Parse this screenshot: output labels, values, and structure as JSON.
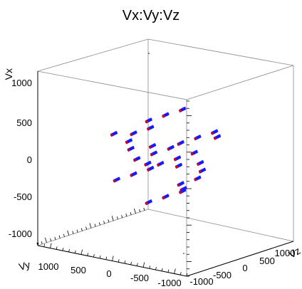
{
  "chart_data": {
    "type": "scatter",
    "title": "Vx:Vy:Vz",
    "axes": {
      "x": {
        "label": "Vy",
        "ticks": [
          1000,
          500,
          0,
          -500,
          -1000
        ]
      },
      "y": {
        "label": "Vz",
        "ticks": [
          -1000,
          -500,
          0,
          500,
          1000
        ]
      },
      "z": {
        "label": "Vx",
        "ticks": [
          1000,
          500,
          0,
          -500,
          -1000
        ]
      }
    },
    "range": {
      "vy": [
        -1200,
        1200
      ],
      "vz": [
        -1200,
        1200
      ],
      "vx": [
        -1200,
        1200
      ]
    },
    "grid": false,
    "legend": "none",
    "colors": {
      "outer": "#1a1aff",
      "inner": "#e00000",
      "frame": "#888888"
    },
    "clusters": [
      {
        "vy": 0,
        "vz": 380,
        "vx": 560
      },
      {
        "vy": 0,
        "vz": 0,
        "vx": 560
      },
      {
        "vy": 0,
        "vz": -380,
        "vx": 560
      },
      {
        "vy": 380,
        "vz": 190,
        "vx": 280
      },
      {
        "vy": 380,
        "vz": -190,
        "vx": 280
      },
      {
        "vy": -380,
        "vz": 190,
        "vx": 280
      },
      {
        "vy": -380,
        "vz": -190,
        "vx": 280
      },
      {
        "vy": 560,
        "vz": 0,
        "vx": 0
      },
      {
        "vy": 190,
        "vz": 380,
        "vx": 0
      },
      {
        "vy": 190,
        "vz": 0,
        "vx": 0
      },
      {
        "vy": 190,
        "vz": -380,
        "vx": 0
      },
      {
        "vy": -190,
        "vz": 380,
        "vx": 0
      },
      {
        "vy": -190,
        "vz": 0,
        "vx": 0
      },
      {
        "vy": -190,
        "vz": -380,
        "vx": 0
      },
      {
        "vy": -560,
        "vz": 0,
        "vx": 0
      },
      {
        "vy": 380,
        "vz": 190,
        "vx": -280
      },
      {
        "vy": 380,
        "vz": -190,
        "vx": -280
      },
      {
        "vy": -380,
        "vz": 190,
        "vx": -280
      },
      {
        "vy": -380,
        "vz": -190,
        "vx": -280
      },
      {
        "vy": 0,
        "vz": 380,
        "vx": -560
      },
      {
        "vy": 0,
        "vz": 0,
        "vx": -560
      },
      {
        "vy": 0,
        "vz": -380,
        "vx": -560
      },
      {
        "vy": 560,
        "vz": 380,
        "vx": 280
      },
      {
        "vy": -560,
        "vz": -380,
        "vx": 280
      },
      {
        "vy": 560,
        "vz": -380,
        "vx": -280
      },
      {
        "vy": -560,
        "vz": 380,
        "vx": -280
      },
      {
        "vy": 190,
        "vz": 560,
        "vx": -280
      },
      {
        "vy": -190,
        "vz": -560,
        "vx": 280
      },
      {
        "vy": 190,
        "vz": -560,
        "vx": 280
      },
      {
        "vy": -190,
        "vz": 560,
        "vx": -280
      },
      {
        "vy": 380,
        "vz": 570,
        "vx": 280
      },
      {
        "vy": -380,
        "vz": -570,
        "vx": -280
      }
    ]
  }
}
